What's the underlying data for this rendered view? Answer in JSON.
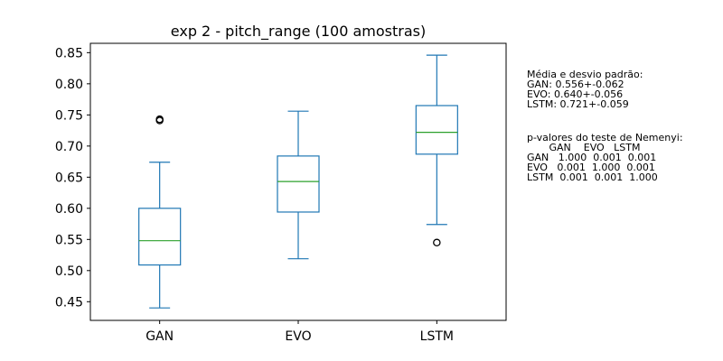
{
  "chart_data": {
    "type": "box",
    "title": "exp 2 - pitch_range (100 amostras)",
    "xlabel": "",
    "ylabel": "",
    "categories": [
      "GAN",
      "EVO",
      "LSTM"
    ],
    "ylim": [
      0.42,
      0.865
    ],
    "yticks": [
      "0.45",
      "0.50",
      "0.55",
      "0.60",
      "0.65",
      "0.70",
      "0.75",
      "0.80",
      "0.85"
    ],
    "ytick_values": [
      0.45,
      0.5,
      0.55,
      0.6,
      0.65,
      0.7,
      0.75,
      0.8,
      0.85
    ],
    "grid": false,
    "box_color": "#1f77b4",
    "median_color": "#2ca02c",
    "boxes": [
      {
        "name": "GAN",
        "whisker_low": 0.44,
        "q1": 0.509,
        "median": 0.548,
        "q3": 0.6,
        "whisker_high": 0.674,
        "outliers": [
          0.741,
          0.743
        ]
      },
      {
        "name": "EVO",
        "whisker_low": 0.519,
        "q1": 0.594,
        "median": 0.643,
        "q3": 0.684,
        "whisker_high": 0.756,
        "outliers": []
      },
      {
        "name": "LSTM",
        "whisker_low": 0.574,
        "q1": 0.687,
        "median": 0.722,
        "q3": 0.765,
        "whisker_high": 0.846,
        "outliers": [
          0.545
        ]
      }
    ]
  },
  "annotations": {
    "stats_lines": [
      "Média e desvio padrão:",
      "GAN: 0.556+-0.062",
      "EVO: 0.640+-0.056",
      "LSTM: 0.721+-0.059"
    ],
    "nemenyi_lines": [
      "p-valores do teste de Nemenyi:",
      "       GAN    EVO   LSTM",
      "GAN   1.000  0.001  0.001",
      "EVO   0.001  1.000  0.001",
      "LSTM  0.001  0.001  1.000"
    ]
  }
}
